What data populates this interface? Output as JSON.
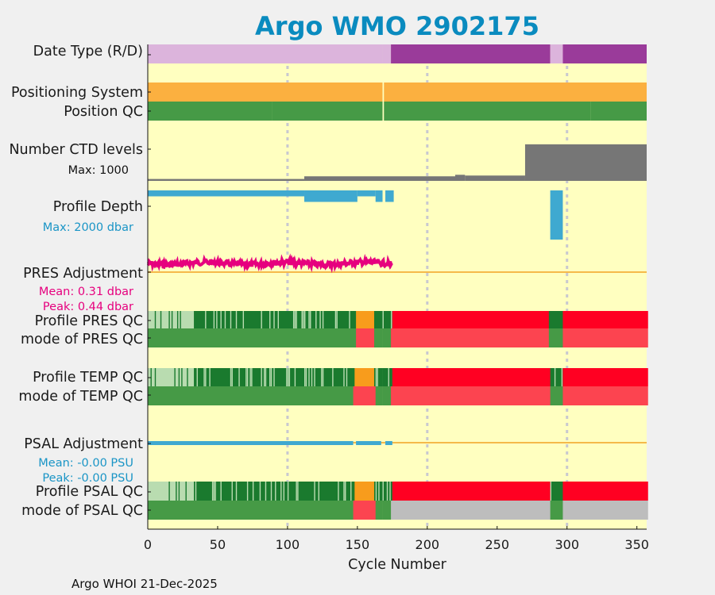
{
  "chart_data": {
    "type": "timeline",
    "title": "Argo WMO 2902175",
    "xlabel": "Cycle Number",
    "xlim": [
      0,
      357
    ],
    "xticks": [
      "0",
      "50",
      "100",
      "150",
      "200",
      "250",
      "300",
      "350"
    ],
    "xtick_values": [
      0,
      50,
      100,
      150,
      200,
      250,
      300,
      350
    ],
    "gridlines": [
      100,
      200,
      300
    ],
    "footer": "Argo WHOI 21-Dec-2025",
    "labels": {
      "data_type": "Date Type (R/D)",
      "positioning": "Positioning System",
      "position_qc": "Position QC",
      "ctd_levels": "Number CTD levels",
      "ctd_max": "Max: 1000",
      "profile_depth": "Profile Depth",
      "depth_max": "Max: 2000 dbar",
      "pres_adj": "PRES Adjustment",
      "pres_mean": "Mean: 0.31 dbar",
      "pres_peak": "Peak: 0.44 dbar",
      "profile_pres_qc": "Profile PRES QC",
      "mode_pres_qc": "mode of PRES QC",
      "profile_temp_qc": "Profile TEMP QC",
      "mode_temp_qc": "mode of TEMP QC",
      "psal_adj": "PSAL Adjustment",
      "psal_mean": "Mean: -0.00 PSU",
      "psal_peak": "Peak: -0.00 PSU",
      "profile_psal_qc": "Profile PSAL QC",
      "mode_psal_qc": "mode of PSAL QC"
    },
    "colors": {
      "title": "#0a8bbf",
      "plot_bg": "#ffffc0",
      "realtime": "#dcb4dc",
      "delayed": "#9a3b9a",
      "positioning": "#fbb040",
      "qc_good": "#469a46",
      "qc_a": "#1a7a2e",
      "qc_b": "#b9dcb0",
      "qc_c": "#f89c1c",
      "qc_f": "#ff0022",
      "qc_bad": "#fc4450",
      "qc_gray": "#bdbdbd",
      "ctd": "#767676",
      "depth": "#3fa9d0",
      "pres": "#e6007e",
      "adj_line": "#f5b94a",
      "pres_text": "#e6007e",
      "psal_text": "#1a95c6",
      "grid": "#c8c8d0"
    },
    "data_mode": [
      {
        "from": 0,
        "to": 167,
        "mode": "R"
      },
      {
        "from": 168,
        "to": 173,
        "mode": "R"
      },
      {
        "from": 174,
        "to": 287,
        "mode": "D"
      },
      {
        "from": 288,
        "to": 296,
        "mode": "R"
      },
      {
        "from": 297,
        "to": 356,
        "mode": "D"
      }
    ],
    "positioning_system": [
      {
        "from": 0,
        "to": 167,
        "value": "GPS"
      },
      {
        "from": 169,
        "to": 356,
        "value": "GPS"
      }
    ],
    "position_qc": [
      {
        "from": 0,
        "to": 88,
        "code": "good"
      },
      {
        "from": 89,
        "to": 167,
        "code": "good"
      },
      {
        "from": 169,
        "to": 316,
        "code": "good"
      },
      {
        "from": 317,
        "to": 356,
        "code": "good"
      }
    ],
    "ctd_levels": [
      {
        "from": 0,
        "to": 111,
        "value": 50
      },
      {
        "from": 112,
        "to": 219,
        "value": 120
      },
      {
        "from": 220,
        "to": 226,
        "value": 160
      },
      {
        "from": 227,
        "to": 269,
        "value": 140
      },
      {
        "from": 270,
        "to": 356,
        "value": 960
      }
    ],
    "profile_depth": [
      {
        "from": 0,
        "to": 111,
        "value": 150
      },
      {
        "from": 112,
        "to": 149,
        "value": 290
      },
      {
        "from": 150,
        "to": 162,
        "value": 150
      },
      {
        "from": 163,
        "to": 167,
        "value": 290
      },
      {
        "from": 170,
        "to": 175,
        "value": 290
      },
      {
        "from": 288,
        "to": 296,
        "value": 1240
      }
    ],
    "pres_adjustment": {
      "from": 0,
      "to": 175,
      "mean": 0.31,
      "peak": 0.44
    },
    "pres_qc": [
      {
        "from": 0,
        "to": 33,
        "code": "b"
      },
      {
        "from": 33,
        "to": 149,
        "code": "a"
      },
      {
        "from": 149,
        "to": 162,
        "code": "c"
      },
      {
        "from": 162,
        "to": 167,
        "code": "a"
      },
      {
        "from": 168,
        "to": 175,
        "code": "a"
      },
      {
        "from": 175,
        "to": 287,
        "code": "f"
      },
      {
        "from": 287,
        "to": 297,
        "code": "a"
      },
      {
        "from": 297,
        "to": 357,
        "code": "f"
      }
    ],
    "pres_mode": [
      {
        "from": 0,
        "to": 149,
        "code": "good"
      },
      {
        "from": 149,
        "to": 162,
        "code": "bad"
      },
      {
        "from": 162,
        "to": 167,
        "code": "good"
      },
      {
        "from": 168,
        "to": 174,
        "code": "good"
      },
      {
        "from": 174,
        "to": 287,
        "code": "bad"
      },
      {
        "from": 287,
        "to": 297,
        "code": "good"
      },
      {
        "from": 297,
        "to": 357,
        "code": "bad"
      }
    ],
    "temp_qc": [
      {
        "from": 0,
        "to": 33,
        "code": "b"
      },
      {
        "from": 33,
        "to": 148,
        "code": "a"
      },
      {
        "from": 148,
        "to": 162,
        "code": "c"
      },
      {
        "from": 162,
        "to": 167,
        "code": "a"
      },
      {
        "from": 168,
        "to": 175,
        "code": "a"
      },
      {
        "from": 175,
        "to": 288,
        "code": "f"
      },
      {
        "from": 288,
        "to": 297,
        "code": "a"
      },
      {
        "from": 297,
        "to": 357,
        "code": "f"
      }
    ],
    "temp_mode": [
      {
        "from": 0,
        "to": 147,
        "code": "good"
      },
      {
        "from": 147,
        "to": 163,
        "code": "bad"
      },
      {
        "from": 163,
        "to": 167,
        "code": "good"
      },
      {
        "from": 168,
        "to": 174,
        "code": "good"
      },
      {
        "from": 174,
        "to": 288,
        "code": "bad"
      },
      {
        "from": 288,
        "to": 297,
        "code": "good"
      },
      {
        "from": 297,
        "to": 357,
        "code": "bad"
      }
    ],
    "psal_adjustment": {
      "segments": [
        {
          "from": 0,
          "to": 147
        },
        {
          "from": 149,
          "to": 167
        },
        {
          "from": 170,
          "to": 175
        }
      ],
      "mean": -0.0,
      "peak": -0.0
    },
    "psal_qc": [
      {
        "from": 0,
        "to": 33,
        "code": "b"
      },
      {
        "from": 33,
        "to": 148,
        "code": "a"
      },
      {
        "from": 148,
        "to": 162,
        "code": "c"
      },
      {
        "from": 162,
        "to": 167,
        "code": "a"
      },
      {
        "from": 168,
        "to": 175,
        "code": "a"
      },
      {
        "from": 175,
        "to": 288,
        "code": "f"
      },
      {
        "from": 288,
        "to": 297,
        "code": "a"
      },
      {
        "from": 297,
        "to": 357,
        "code": "f"
      }
    ],
    "psal_mode": [
      {
        "from": 0,
        "to": 147,
        "code": "good"
      },
      {
        "from": 147,
        "to": 163,
        "code": "bad"
      },
      {
        "from": 163,
        "to": 167,
        "code": "good"
      },
      {
        "from": 168,
        "to": 174,
        "code": "good"
      },
      {
        "from": 174,
        "to": 288,
        "code": "gray"
      },
      {
        "from": 288,
        "to": 297,
        "code": "good"
      },
      {
        "from": 297,
        "to": 357,
        "code": "gray"
      }
    ]
  }
}
